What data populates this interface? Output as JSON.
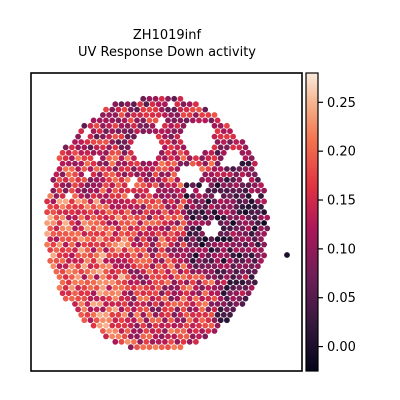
{
  "chart_data": {
    "type": "heatmap",
    "subtype": "spatial-hexbin",
    "title": "ZH1019inf",
    "subtitle": "UV Response Down activity",
    "xlabel": "",
    "ylabel": "",
    "grid": false,
    "colormap": "rocket",
    "colorbar": {
      "placement": "right",
      "vmin": -0.025,
      "vmax": 0.28,
      "ticks": [
        0.0,
        0.05,
        0.1,
        0.15,
        0.2,
        0.25
      ],
      "tick_labels": [
        "0.00",
        "0.05",
        "0.10",
        "0.15",
        "0.20",
        "0.25"
      ]
    },
    "value_summary": {
      "typical_range": [
        0.05,
        0.22
      ],
      "lower_right_region": "low (~0.02-0.08)",
      "lower_left_region": "high (~0.15-0.25)"
    }
  }
}
